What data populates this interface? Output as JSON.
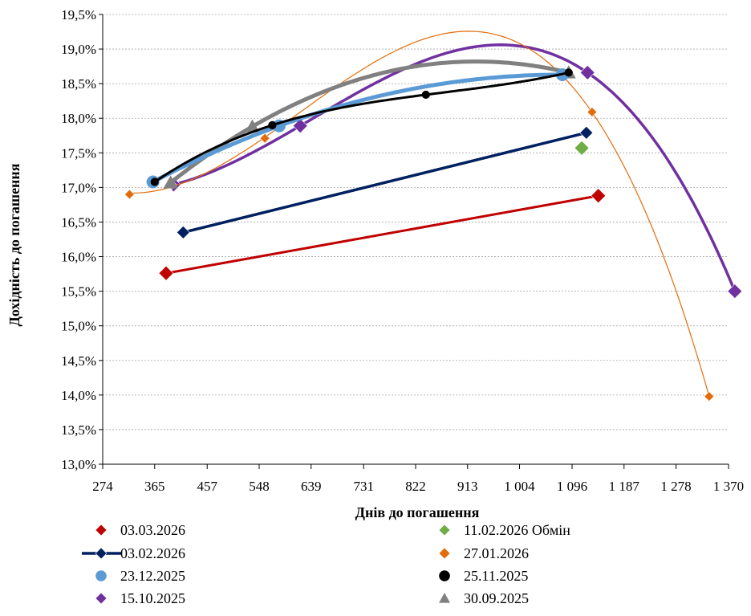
{
  "chart_data": {
    "type": "scatter",
    "xlabel": "Днів до погашення",
    "ylabel": "Дохідність до погашення",
    "xlim": [
      274,
      1370
    ],
    "ylim": [
      13.0,
      19.5
    ],
    "x_ticks": [
      274,
      365,
      457,
      548,
      639,
      731,
      822,
      913,
      1004,
      1096,
      1187,
      1278,
      1370
    ],
    "x_tick_labels": [
      "274",
      "365",
      "457",
      "548",
      "639",
      "731",
      "822",
      "913",
      "1 004",
      "1 096",
      "1 187",
      "1 278",
      "1 370"
    ],
    "y_ticks": [
      13.0,
      13.5,
      14.0,
      14.5,
      15.0,
      15.5,
      16.0,
      16.5,
      17.0,
      17.5,
      18.0,
      18.5,
      19.0,
      19.5
    ],
    "y_tick_labels": [
      "13,0%",
      "13,5%",
      "14,0%",
      "14,5%",
      "15,0%",
      "15,5%",
      "16,0%",
      "16,5%",
      "17,0%",
      "17,5%",
      "18,0%",
      "18,5%",
      "19,0%",
      "19,5%"
    ],
    "grid": "horizontal",
    "legend_position": "bottom",
    "series": [
      {
        "name": "03.03.2026",
        "color": "#c00000",
        "marker": "diamond",
        "line": "linear",
        "points": [
          [
            385,
            15.76
          ],
          [
            1142,
            16.88
          ]
        ]
      },
      {
        "name": "11.02.2026 Обмін",
        "color": "#70ad47",
        "marker": "diamond",
        "line": "none",
        "points": [
          [
            1113,
            17.57
          ]
        ]
      },
      {
        "name": "03.02.2026",
        "color": "#002060",
        "marker": "diamond",
        "line": "linear",
        "points": [
          [
            415,
            16.35
          ],
          [
            1121,
            17.79
          ]
        ]
      },
      {
        "name": "27.01.2026",
        "color": "#e36c0a",
        "marker": "diamond",
        "line": "poly",
        "points": [
          [
            321,
            16.9
          ],
          [
            395,
            17.04
          ],
          [
            558,
            17.71
          ],
          [
            1131,
            18.09
          ],
          [
            1336,
            13.98
          ]
        ]
      },
      {
        "name": "23.12.2025",
        "color": "#5b9bd5",
        "marker": "circle",
        "line": "poly",
        "points": [
          [
            362,
            17.08
          ],
          [
            583,
            17.89
          ],
          [
            1079,
            18.63
          ]
        ]
      },
      {
        "name": "25.11.2025",
        "color": "#000000",
        "marker": "circle",
        "line": "poly",
        "points": [
          [
            365,
            17.08
          ],
          [
            571,
            17.9
          ],
          [
            840,
            18.34
          ],
          [
            1090,
            18.66
          ]
        ]
      },
      {
        "name": "15.10.2025",
        "color": "#7030a0",
        "marker": "diamond",
        "line": "poly",
        "points": [
          [
            398,
            17.04
          ],
          [
            620,
            17.89
          ],
          [
            1123,
            18.66
          ],
          [
            1381,
            15.5
          ]
        ]
      },
      {
        "name": "30.09.2025",
        "color": "#808080",
        "marker": "triangle",
        "line": "poly",
        "points": [
          [
            393,
            17.07
          ],
          [
            536,
            17.88
          ],
          [
            1090,
            18.66
          ]
        ]
      }
    ],
    "legend": [
      {
        "label": "03.03.2026",
        "color": "#c00000",
        "marker": "diamond",
        "line": false
      },
      {
        "label": "11.02.2026 Обмін",
        "color": "#70ad47",
        "marker": "diamond",
        "line": false
      },
      {
        "label": "03.02.2026",
        "color": "#002060",
        "marker": "diamond",
        "line": true
      },
      {
        "label": "27.01.2026",
        "color": "#e36c0a",
        "marker": "diamond",
        "line": false
      },
      {
        "label": "23.12.2025",
        "color": "#5b9bd5",
        "marker": "circle",
        "line": false
      },
      {
        "label": "25.11.2025",
        "color": "#000000",
        "marker": "circle",
        "line": false
      },
      {
        "label": "15.10.2025",
        "color": "#7030a0",
        "marker": "diamond",
        "line": false
      },
      {
        "label": "30.09.2025",
        "color": "#808080",
        "marker": "triangle",
        "line": false
      }
    ]
  }
}
